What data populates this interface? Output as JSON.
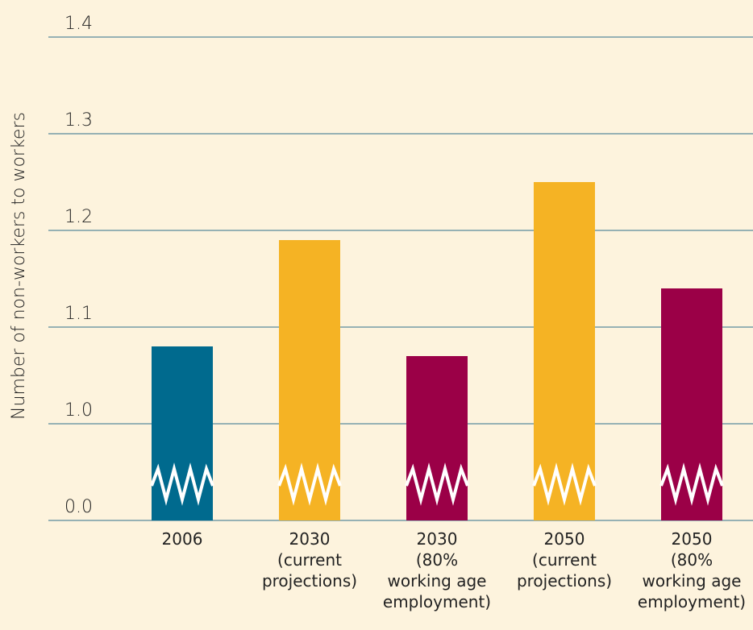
{
  "chart_data": {
    "type": "bar",
    "y_label": "Number of non-workers to workers",
    "categories": [
      "2006",
      "2030\n(current\nprojections)",
      "2030\n(80%\nworking age\nemployment)",
      "2050\n(current\nprojections)",
      "2050\n(80%\nworking age\nemployment)"
    ],
    "values": [
      1.08,
      1.19,
      1.07,
      1.25,
      1.14
    ],
    "colors": [
      "#006a8e",
      "#f5b324",
      "#9b0047",
      "#f5b324",
      "#9b0047"
    ],
    "ylim": [
      0,
      1.4
    ],
    "y_break": [
      0,
      1.0
    ],
    "yticks": [
      {
        "value": 0,
        "label": "0.0"
      },
      {
        "value": 1,
        "label": "1.0"
      },
      1.1,
      1.2,
      1.3,
      1.4
    ],
    "grid": true
  }
}
